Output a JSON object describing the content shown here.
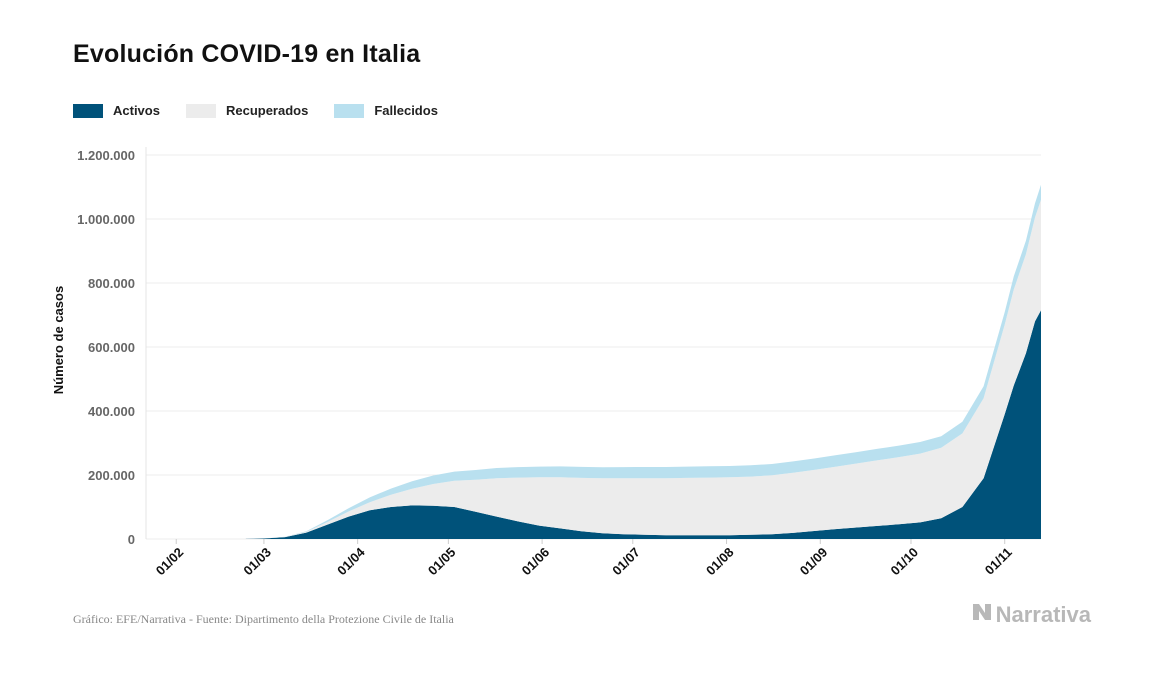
{
  "title": "Evolución COVID-19 en Italia",
  "legend": [
    {
      "label": "Activos",
      "color": "#00527a"
    },
    {
      "label": "Recuperados",
      "color": "#ececec"
    },
    {
      "label": "Fallecidos",
      "color": "#b9e0ef"
    }
  ],
  "source": "Gráfico: EFE/Narrativa - Fuente: Dipartimento della Protezione Civile de Italia",
  "brand": "Narrativa",
  "brand_icon": "narrativa-logo-icon",
  "chart_data": {
    "type": "area",
    "stacked": true,
    "title": "Evolución COVID-19 en Italia",
    "ylabel": "Número de casos",
    "xlabel": "",
    "ylim": [
      0,
      1200000
    ],
    "yticks": [
      0,
      200000,
      400000,
      600000,
      800000,
      1000000,
      1200000
    ],
    "ytick_labels": [
      "0",
      "200.000",
      "400.000",
      "600.000",
      "800.000",
      "1.000.000",
      "1.200.000"
    ],
    "xlim": [
      "2020-01-22",
      "2020-11-13"
    ],
    "xticks": [
      "2020-02-01",
      "2020-03-01",
      "2020-04-01",
      "2020-05-01",
      "2020-06-01",
      "2020-07-01",
      "2020-08-01",
      "2020-09-01",
      "2020-10-01",
      "2020-11-01"
    ],
    "xtick_labels": [
      "01/02",
      "01/03",
      "01/04",
      "01/05",
      "01/06",
      "01/07",
      "01/08",
      "01/09",
      "01/10",
      "01/11"
    ],
    "grid": true,
    "legend_position": "top-left",
    "x": [
      "2020-02-24",
      "2020-03-01",
      "2020-03-08",
      "2020-03-15",
      "2020-03-22",
      "2020-03-29",
      "2020-04-05",
      "2020-04-12",
      "2020-04-19",
      "2020-04-26",
      "2020-05-03",
      "2020-05-10",
      "2020-05-17",
      "2020-05-24",
      "2020-05-31",
      "2020-06-07",
      "2020-06-14",
      "2020-06-21",
      "2020-06-28",
      "2020-07-05",
      "2020-07-12",
      "2020-07-19",
      "2020-07-26",
      "2020-08-02",
      "2020-08-09",
      "2020-08-16",
      "2020-08-23",
      "2020-08-30",
      "2020-09-06",
      "2020-09-13",
      "2020-09-20",
      "2020-09-27",
      "2020-10-04",
      "2020-10-11",
      "2020-10-18",
      "2020-10-25",
      "2020-11-01",
      "2020-11-04",
      "2020-11-08",
      "2020-11-11",
      "2020-11-13"
    ],
    "series": [
      {
        "name": "Activos",
        "color": "#00527a",
        "values": [
          200,
          1500,
          6000,
          20000,
          45000,
          70000,
          90000,
          100000,
          105000,
          104000,
          100000,
          85000,
          70000,
          55000,
          42000,
          33000,
          24000,
          18000,
          15000,
          13000,
          12000,
          12000,
          12000,
          12000,
          13000,
          15000,
          19000,
          25000,
          31000,
          36000,
          41000,
          46000,
          52000,
          65000,
          100000,
          190000,
          390000,
          480000,
          580000,
          680000,
          715000
        ]
      },
      {
        "name": "Recuperados",
        "color": "#ececec",
        "values": [
          0,
          100,
          700,
          2500,
          8000,
          16000,
          25000,
          38000,
          52000,
          68000,
          82000,
          100000,
          120000,
          137000,
          151000,
          160000,
          167000,
          172000,
          175000,
          177000,
          178000,
          179000,
          180000,
          181000,
          182000,
          184000,
          188000,
          191000,
          195000,
          200000,
          205000,
          210000,
          215000,
          220000,
          230000,
          250000,
          280000,
          300000,
          310000,
          325000,
          345000
        ]
      },
      {
        "name": "Fallecidos",
        "color": "#b9e0ef",
        "values": [
          10,
          50,
          300,
          1800,
          5500,
          10000,
          15000,
          19500,
          23500,
          26500,
          28500,
          30500,
          32000,
          32800,
          33400,
          33800,
          34200,
          34500,
          34700,
          34900,
          35000,
          35100,
          35150,
          35200,
          35250,
          35350,
          35450,
          35550,
          35600,
          35700,
          35800,
          35900,
          36000,
          36300,
          36700,
          37500,
          39000,
          41000,
          42000,
          44000,
          47000
        ]
      }
    ]
  }
}
